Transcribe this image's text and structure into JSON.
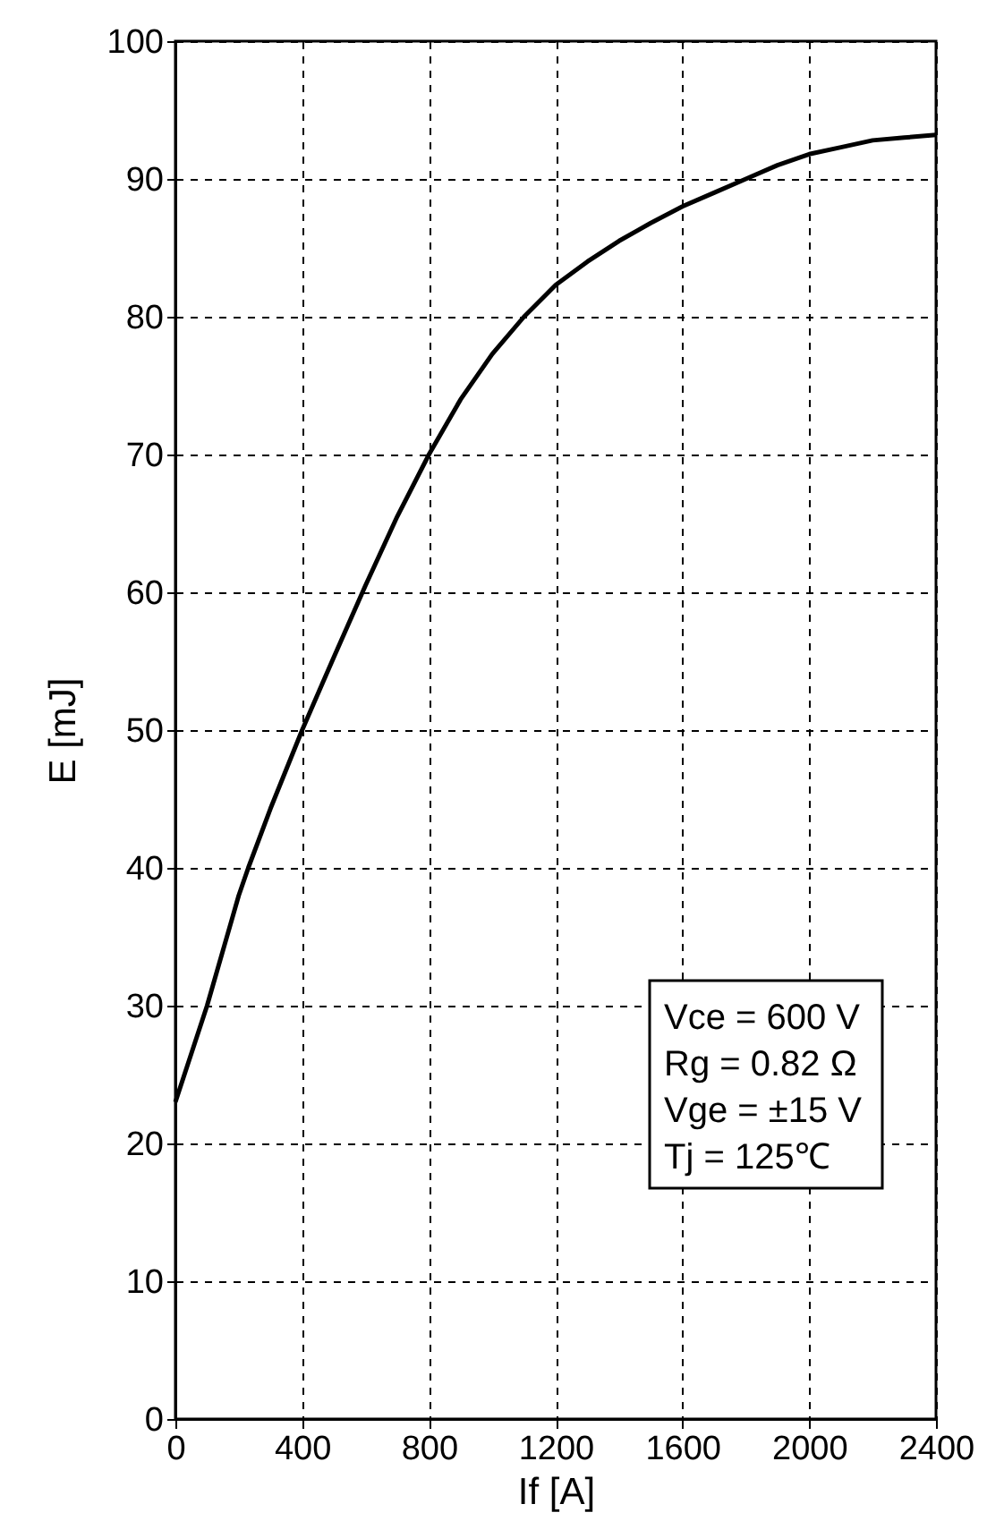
{
  "chart_data": {
    "type": "line",
    "xlabel": "If [A]",
    "ylabel": "E [mJ]",
    "x": [
      0,
      100,
      200,
      230,
      300,
      400,
      500,
      600,
      700,
      800,
      900,
      1000,
      1100,
      1200,
      1300,
      1400,
      1500,
      1600,
      1700,
      1800,
      1900,
      2000,
      2100,
      2200,
      2300,
      2400
    ],
    "series": [
      {
        "color": "#000000",
        "values": [
          23,
          30,
          38,
          40,
          44.3,
          50,
          55.3,
          60.5,
          65.5,
          70,
          74,
          77.3,
          80,
          82.3,
          84,
          85.5,
          86.8,
          88,
          89,
          90,
          91,
          91.8,
          92.3,
          92.8,
          93,
          93.2
        ]
      }
    ],
    "xlim": [
      0,
      2400
    ],
    "ylim": [
      0,
      100
    ],
    "xticks": [
      0,
      400,
      800,
      1200,
      1600,
      2000,
      2400
    ],
    "yticks": [
      0,
      10,
      20,
      30,
      40,
      50,
      60,
      70,
      80,
      90,
      100
    ],
    "grid": true,
    "legend": false,
    "marker": "none",
    "line_style": "solid",
    "annotations": [
      "Vce = 600 V",
      "Rg = 0.82 Ω",
      "Vge = ±15 V",
      "Tj = 125℃"
    ]
  }
}
